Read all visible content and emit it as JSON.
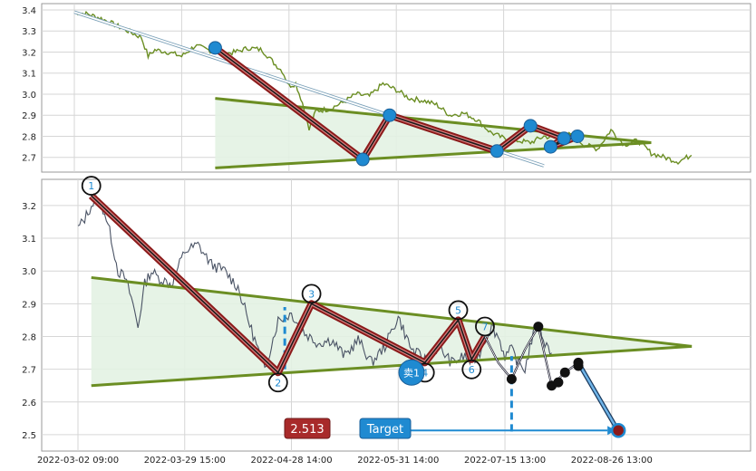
{
  "colors": {
    "grid": "#d6d6d6",
    "frame": "#9a9a9a",
    "price_top": "#6b8e23",
    "price_bottom": "#4a5365",
    "trend": "#6b8e23",
    "fill": "#e3f2e3",
    "zigzag_outer": "#8b1a1a",
    "zigzag_inner": "#d88080",
    "blue": "#1f8ad1",
    "label_bg": "#a82a2a"
  },
  "chart_data": [
    {
      "type": "line",
      "panel": "top",
      "ylim": [
        2.63,
        3.43
      ],
      "y_ticks": [
        "3.4",
        "3.3",
        "3.2",
        "3.1",
        "3.0",
        "2.9",
        "2.8",
        "2.7"
      ],
      "y_tick_values": [
        3.4,
        3.3,
        3.2,
        3.1,
        3.0,
        2.9,
        2.8,
        2.7
      ],
      "x_index_range": [
        0,
        100
      ],
      "price_series": [
        [
          0,
          3.39
        ],
        [
          2,
          3.38
        ],
        [
          4,
          3.36
        ],
        [
          6,
          3.33
        ],
        [
          8,
          3.3
        ],
        [
          10,
          3.27
        ],
        [
          11,
          3.18
        ],
        [
          12,
          3.21
        ],
        [
          14,
          3.2
        ],
        [
          16,
          3.18
        ],
        [
          18,
          3.23
        ],
        [
          20,
          3.21
        ],
        [
          22,
          3.19
        ],
        [
          24,
          3.2
        ],
        [
          26,
          3.22
        ],
        [
          28,
          3.21
        ],
        [
          30,
          3.14
        ],
        [
          31,
          3.11
        ],
        [
          32,
          3.04
        ],
        [
          33,
          3.05
        ],
        [
          34,
          2.96
        ],
        [
          35,
          2.83
        ],
        [
          36,
          2.92
        ],
        [
          38,
          2.93
        ],
        [
          40,
          2.96
        ],
        [
          42,
          3.0
        ],
        [
          44,
          2.99
        ],
        [
          46,
          3.05
        ],
        [
          48,
          3.02
        ],
        [
          50,
          2.98
        ],
        [
          52,
          2.97
        ],
        [
          54,
          2.95
        ],
        [
          56,
          2.9
        ],
        [
          58,
          2.91
        ],
        [
          60,
          2.88
        ],
        [
          62,
          2.82
        ],
        [
          64,
          2.79
        ],
        [
          66,
          2.78
        ],
        [
          68,
          2.77
        ],
        [
          70,
          2.8
        ],
        [
          72,
          2.79
        ],
        [
          74,
          2.81
        ],
        [
          76,
          2.76
        ],
        [
          78,
          2.74
        ],
        [
          80,
          2.83
        ],
        [
          82,
          2.76
        ],
        [
          84,
          2.78
        ],
        [
          86,
          2.72
        ],
        [
          88,
          2.7
        ],
        [
          90,
          2.68
        ],
        [
          92,
          2.71
        ]
      ],
      "trendlines": [
        {
          "name": "upper",
          "points": [
            [
              21,
              2.98
            ],
            [
              86,
              2.77
            ]
          ]
        },
        {
          "name": "lower",
          "points": [
            [
              21,
              2.65
            ],
            [
              86,
              2.77
            ]
          ]
        },
        {
          "name": "channel",
          "points": [
            [
              0,
              3.39
            ],
            [
              70,
              2.66
            ]
          ]
        }
      ],
      "zigzag": [
        [
          21,
          3.22
        ],
        [
          43,
          2.69
        ],
        [
          47,
          2.9
        ],
        [
          63,
          2.73
        ],
        [
          68,
          2.85
        ],
        [
          73,
          2.79
        ],
        [
          71,
          2.75
        ],
        [
          75,
          2.8
        ]
      ],
      "markers": [
        [
          21,
          3.22
        ],
        [
          43,
          2.69
        ],
        [
          47,
          2.9
        ],
        [
          63,
          2.73
        ],
        [
          68,
          2.85
        ],
        [
          73,
          2.79
        ],
        [
          71,
          2.75
        ],
        [
          75,
          2.8
        ]
      ]
    },
    {
      "type": "line",
      "panel": "bottom",
      "ylim": [
        2.45,
        3.28
      ],
      "y_ticks": [
        "3.2",
        "3.1",
        "3.0",
        "2.9",
        "2.8",
        "2.7",
        "2.6",
        "2.5"
      ],
      "y_tick_values": [
        3.2,
        3.1,
        3.0,
        2.9,
        2.8,
        2.7,
        2.6,
        2.5
      ],
      "x_index_range": [
        0,
        100
      ],
      "x_ticks": [
        {
          "x": 0,
          "label": "2022-03-02 09:00"
        },
        {
          "x": 16,
          "label": "2022-03-29 15:00"
        },
        {
          "x": 32,
          "label": "2022-04-28 14:00"
        },
        {
          "x": 48,
          "label": "2022-05-31 14:00"
        },
        {
          "x": 64,
          "label": "2022-07-15 13:00"
        },
        {
          "x": 80,
          "label": "2022-08-26 13:00"
        }
      ],
      "price_series": [
        [
          0,
          3.13
        ],
        [
          1,
          3.16
        ],
        [
          2,
          3.2
        ],
        [
          3,
          3.22
        ],
        [
          4,
          3.18
        ],
        [
          5,
          3.1
        ],
        [
          6,
          3.0
        ],
        [
          7,
          2.98
        ],
        [
          8,
          2.92
        ],
        [
          9,
          2.83
        ],
        [
          10,
          2.96
        ],
        [
          11,
          3.0
        ],
        [
          12,
          2.98
        ],
        [
          14,
          2.96
        ],
        [
          16,
          3.06
        ],
        [
          18,
          3.08
        ],
        [
          20,
          3.02
        ],
        [
          22,
          3.0
        ],
        [
          24,
          2.95
        ],
        [
          26,
          2.82
        ],
        [
          28,
          2.7
        ],
        [
          30,
          2.85
        ],
        [
          32,
          2.87
        ],
        [
          34,
          2.81
        ],
        [
          36,
          2.78
        ],
        [
          38,
          2.79
        ],
        [
          40,
          2.74
        ],
        [
          42,
          2.79
        ],
        [
          44,
          2.72
        ],
        [
          46,
          2.77
        ],
        [
          48,
          2.86
        ],
        [
          50,
          2.76
        ],
        [
          52,
          2.73
        ],
        [
          54,
          2.77
        ],
        [
          56,
          2.72
        ],
        [
          58,
          2.74
        ],
        [
          59,
          2.72
        ],
        [
          60,
          2.74
        ],
        [
          61,
          2.79
        ],
        [
          62,
          2.83
        ],
        [
          63,
          2.8
        ],
        [
          64,
          2.74
        ],
        [
          65,
          2.76
        ],
        [
          66,
          2.72
        ],
        [
          67,
          2.7
        ],
        [
          68,
          2.79
        ],
        [
          69,
          2.84
        ],
        [
          70,
          2.78
        ],
        [
          71,
          2.75
        ]
      ],
      "trendlines": [
        {
          "name": "upper",
          "points": [
            [
              2,
              2.98
            ],
            [
              92,
              2.77
            ]
          ]
        },
        {
          "name": "lower",
          "points": [
            [
              2,
              2.65
            ],
            [
              92,
              2.77
            ]
          ]
        }
      ],
      "zigzag_points": [
        {
          "label": "1",
          "x": 2,
          "y": 3.23
        },
        {
          "label": "2",
          "x": 30,
          "y": 2.69
        },
        {
          "label": "3",
          "x": 35,
          "y": 2.9
        },
        {
          "label": "4",
          "x": 52,
          "y": 2.72
        },
        {
          "label": "5",
          "x": 57,
          "y": 2.85
        },
        {
          "label": "6",
          "x": 59,
          "y": 2.73
        },
        {
          "label": "7",
          "x": 61,
          "y": 2.8
        }
      ],
      "forecast_path": [
        [
          61,
          2.8
        ],
        [
          63,
          2.72
        ],
        [
          65,
          2.67
        ],
        [
          67,
          2.76
        ],
        [
          69,
          2.83
        ],
        [
          71,
          2.65
        ],
        [
          73,
          2.69
        ],
        [
          75,
          2.72
        ],
        [
          81,
          2.51
        ]
      ],
      "forecast_nodes": [
        [
          65,
          2.67
        ],
        [
          69,
          2.83
        ],
        [
          71,
          2.65
        ],
        [
          72,
          2.66
        ],
        [
          73,
          2.69
        ],
        [
          75,
          2.72
        ],
        [
          75,
          2.71
        ]
      ],
      "dashed_guides": [
        {
          "x": 31,
          "from": 2.7,
          "to": 2.89
        },
        {
          "x": 65,
          "from": 2.51,
          "to": 2.74
        }
      ],
      "sell_marker": {
        "label": "卖1",
        "x": 50,
        "y": 2.69
      },
      "price_label": "2.513",
      "target_label": "Target",
      "target": {
        "x": 81,
        "y": 2.513
      }
    }
  ]
}
